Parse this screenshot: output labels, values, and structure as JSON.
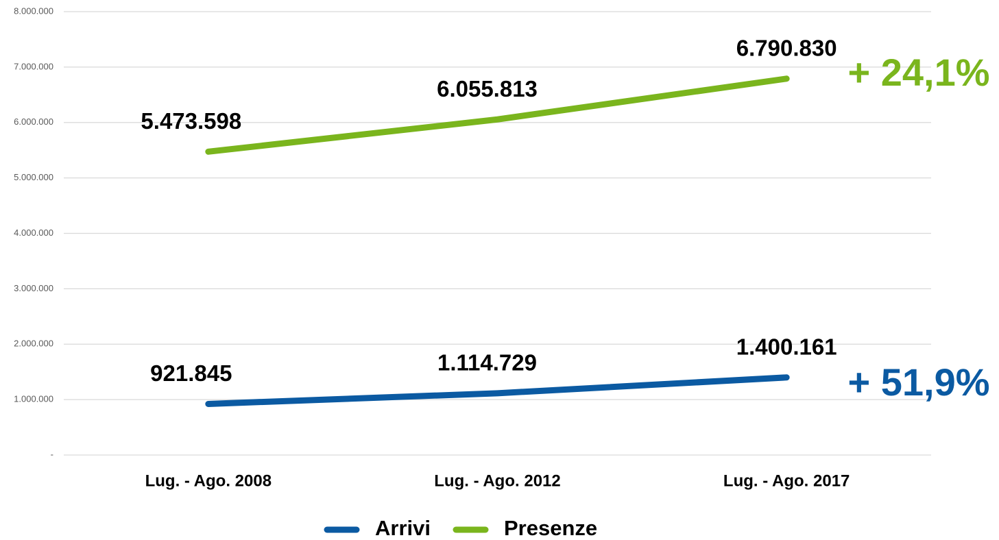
{
  "chart_data": {
    "type": "line",
    "categories": [
      "Lug. - Ago. 2008",
      "Lug. - Ago. 2012",
      "Lug. - Ago. 2017"
    ],
    "series": [
      {
        "name": "Arrivi",
        "color": "#0b5aa2",
        "values": [
          921845,
          1114729,
          1400161
        ],
        "value_labels": [
          "921.845",
          "1.114.729",
          "1.400.161"
        ]
      },
      {
        "name": "Presenze",
        "color": "#7ab51d",
        "values": [
          5473598,
          6055813,
          6790830
        ],
        "value_labels": [
          "5.473.598",
          "6.055.813",
          "6.790.830"
        ]
      }
    ],
    "ylim": [
      0,
      8000000
    ],
    "yticks": [
      {
        "value": 0,
        "label": "-"
      },
      {
        "value": 1000000,
        "label": "1.000.000"
      },
      {
        "value": 2000000,
        "label": "2.000.000"
      },
      {
        "value": 3000000,
        "label": "3.000.000"
      },
      {
        "value": 4000000,
        "label": "4.000.000"
      },
      {
        "value": 5000000,
        "label": "5.000.000"
      },
      {
        "value": 6000000,
        "label": "6.000.000"
      },
      {
        "value": 7000000,
        "label": "7.000.000"
      },
      {
        "value": 8000000,
        "label": "8.000.000"
      }
    ],
    "grid": true,
    "legend": "bottom",
    "annotations": [
      {
        "text": "+ 24,1%",
        "color": "#7ab51d"
      },
      {
        "text": "+ 51,9%",
        "color": "#0b5aa2"
      }
    ]
  }
}
